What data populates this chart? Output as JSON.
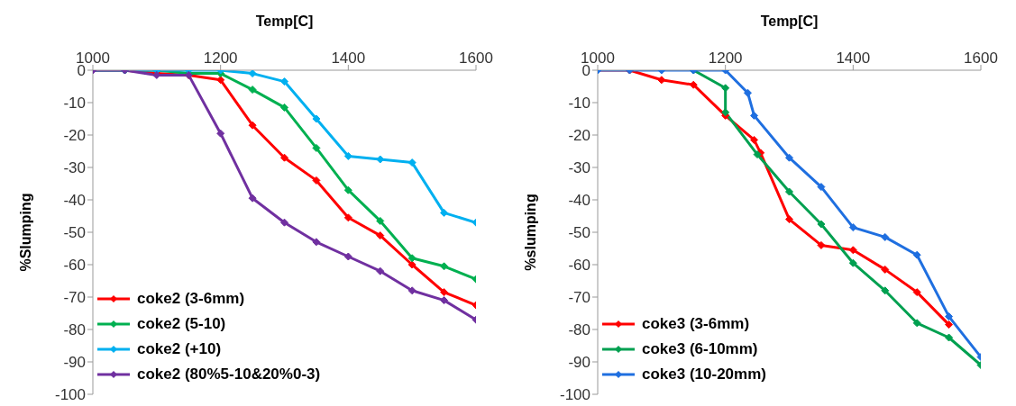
{
  "chart_data": [
    {
      "type": "line",
      "xlabel": "Temp[C]",
      "ylabel": "%Slumping",
      "xlim": [
        1000,
        1600
      ],
      "xticks": [
        1000,
        1200,
        1400,
        1600
      ],
      "ylim": [
        -100,
        0
      ],
      "yticks": [
        -100,
        -90,
        -80,
        -70,
        -60,
        -50,
        -40,
        -30,
        -20,
        -10,
        0
      ],
      "grid": false,
      "legend": "bottom left",
      "marker": "diamond",
      "line_style": "solid",
      "x": [
        1000,
        1050,
        1100,
        1150,
        1200,
        1250,
        1300,
        1350,
        1400,
        1450,
        1500,
        1550,
        1600
      ],
      "series": [
        {
          "name": "coke2 (3-6mm)",
          "color": "#ff0000",
          "values": [
            0,
            0,
            -1,
            -1.5,
            -3,
            -17,
            -27,
            -34,
            -45.5,
            -51,
            -60,
            -68.5,
            -72.5
          ]
        },
        {
          "name": "coke2 (5-10)",
          "color": "#00b050",
          "values": [
            0,
            0,
            0,
            -1,
            -1,
            -6,
            -11.5,
            -24,
            -37,
            -46.5,
            -58,
            -60.5,
            -64.5
          ]
        },
        {
          "name": "coke2 (+10)",
          "color": "#00b0f0",
          "values": [
            0,
            0,
            0,
            0,
            0,
            -1,
            -3.5,
            -15,
            -26.5,
            -27.5,
            -28.5,
            -44,
            -47
          ]
        },
        {
          "name": "coke2 (80%5-10&20%0-3)",
          "color": "#7030a0",
          "values": [
            0,
            0,
            -1.5,
            -1.5,
            -19.5,
            -39.5,
            -47,
            -53,
            -57.5,
            -62,
            -68,
            -71,
            -77
          ]
        }
      ]
    },
    {
      "type": "line",
      "xlabel": "Temp[C]",
      "ylabel": "%slumping",
      "xlim": [
        1000,
        1600
      ],
      "xticks": [
        1000,
        1200,
        1400,
        1600
      ],
      "ylim": [
        -100,
        0
      ],
      "yticks": [
        -100,
        -90,
        -80,
        -70,
        -60,
        -50,
        -40,
        -30,
        -20,
        -10,
        0
      ],
      "grid": false,
      "legend": "bottom left",
      "marker": "diamond",
      "line_style": "solid",
      "series": [
        {
          "name": "coke3 (3-6mm)",
          "color": "#ff0000",
          "x": [
            1000,
            1050,
            1100,
            1150,
            1200,
            1245,
            1255,
            1300,
            1350,
            1400,
            1450,
            1500,
            1550
          ],
          "values": [
            0,
            0,
            -3,
            -4.5,
            -14,
            -21.5,
            -25.5,
            -46,
            -54,
            -55.5,
            -61.5,
            -68.5,
            -78.5
          ]
        },
        {
          "name": "coke3 (6-10mm)",
          "color": "#00a050",
          "x": [
            1150,
            1200,
            1200,
            1250,
            1300,
            1350,
            1400,
            1450,
            1500,
            1550,
            1600
          ],
          "values": [
            0,
            -5.5,
            -13,
            -26,
            -37.5,
            -47.5,
            -59.5,
            -68,
            -78,
            -82.5,
            -91
          ]
        },
        {
          "name": "coke3 (10-20mm)",
          "color": "#1f6fe0",
          "x": [
            1000,
            1050,
            1100,
            1150,
            1200,
            1235,
            1245,
            1300,
            1350,
            1400,
            1450,
            1500,
            1550,
            1600
          ],
          "values": [
            0,
            0,
            0,
            0,
            0,
            -7,
            -14,
            -27,
            -36,
            -48.5,
            -51.5,
            -57,
            -76,
            -88.5
          ]
        }
      ]
    }
  ]
}
